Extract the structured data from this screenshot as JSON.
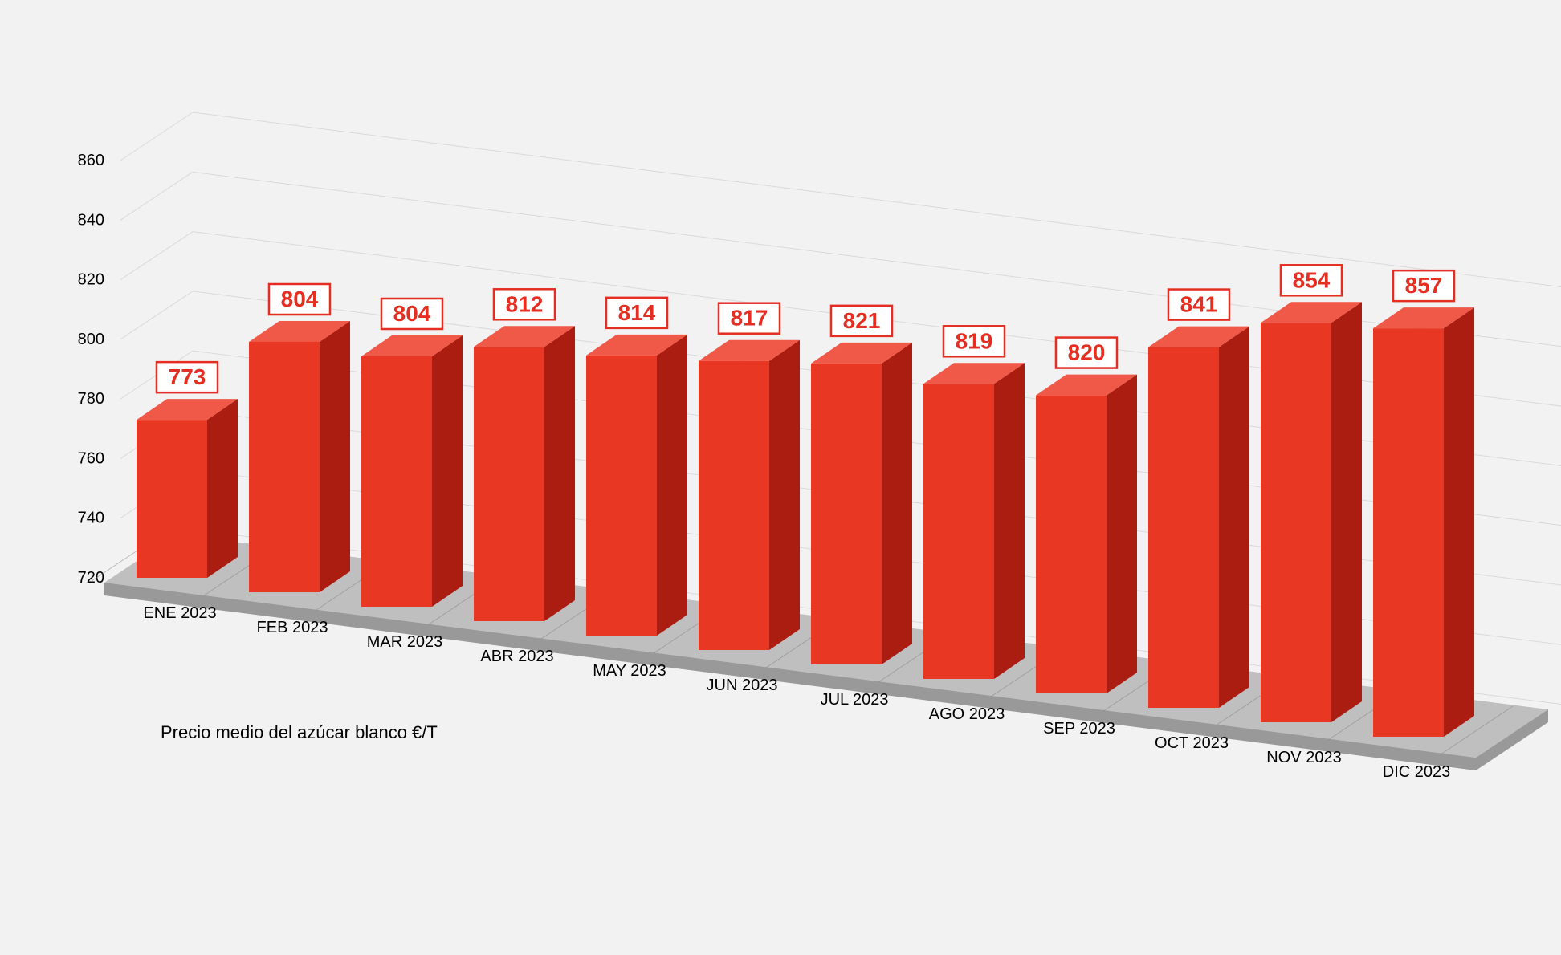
{
  "chart": {
    "type": "bar-3d",
    "footer": "Precio medio del azúcar blanco €/T",
    "categories": [
      "ENE 2023",
      "FEB 2023",
      "MAR 2023",
      "ABR 2023",
      "MAY 2023",
      "JUN 2023",
      "JUL 2023",
      "AGO 2023",
      "SEP 2023",
      "OCT 2023",
      "NOV 2023",
      "DIC 2023"
    ],
    "values": [
      773,
      804,
      804,
      812,
      814,
      817,
      821,
      819,
      820,
      841,
      854,
      857
    ],
    "ymin": 720,
    "ymax": 860,
    "ytick_step": 20,
    "bar_front_color": "#e83723",
    "bar_top_color": "#f05848",
    "bar_side_color": "#ab1d11",
    "floor_top_color": "#bfbfbf",
    "floor_side_color": "#999999",
    "grid_floor_line": "#808080",
    "grid_back_line": "#d9d9d9",
    "data_label_bg": "#ffffff",
    "data_label_border": "#e52e22",
    "data_label_color": "#e52e22",
    "background": "#f2f2f2",
    "font_family": "Segoe UI, Arial, sans-serif",
    "ytick_fontsize": 20,
    "xtick_fontsize": 20,
    "datalabel_fontsize": 28,
    "footer_fontsize": 22
  }
}
